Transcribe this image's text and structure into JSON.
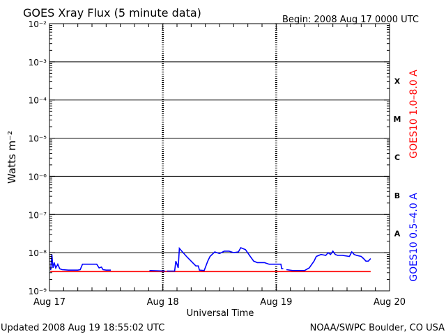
{
  "header": {
    "title": "GOES Xray Flux (5 minute data)",
    "begin": "Begin:  2008 Aug 17 0000 UTC"
  },
  "footer": {
    "updated": "Updated 2008 Aug 19 18:55:02 UTC",
    "credit": "NOAA/SWPC Boulder, CO USA"
  },
  "colors": {
    "long_channel": "#ff0000",
    "short_channel": "#0000ff",
    "axes": "#000000"
  },
  "chart_data": {
    "type": "line",
    "title": "GOES Xray Flux (5 minute data)",
    "xlabel": "Universal Time",
    "ylabel": "Watts m⁻²",
    "yscale": "log",
    "ylim": [
      1e-09,
      0.01
    ],
    "xlim": [
      "2008-08-17T00:00",
      "2008-08-20T00:00"
    ],
    "x_ticks": [
      "Aug 17",
      "Aug 18",
      "Aug 19",
      "Aug 20"
    ],
    "y_ticks": [
      "10⁻⁹",
      "10⁻⁸",
      "10⁻⁷",
      "10⁻⁶",
      "10⁻⁵",
      "10⁻⁴",
      "10⁻³",
      "10⁻²"
    ],
    "flare_classes": [
      {
        "label": "X",
        "lower": 0.0001,
        "upper": 0.001
      },
      {
        "label": "M",
        "lower": 1e-05,
        "upper": 0.0001
      },
      {
        "label": "C",
        "lower": 1e-06,
        "upper": 1e-05
      },
      {
        "label": "B",
        "lower": 1e-07,
        "upper": 1e-06
      },
      {
        "label": "A",
        "lower": 1e-08,
        "upper": 1e-07
      }
    ],
    "grid": "horizontal lines at each decade from 10⁻⁸ to 10⁻³; dashed vertical lines at day boundaries",
    "series": [
      {
        "name": "GOES10 1.0–8.0 A",
        "color": "#ff0000",
        "points": [
          [
            "2008-08-17T00:10",
            3.2e-09
          ],
          [
            "2008-08-19T20:00",
            3.2e-09
          ]
        ]
      },
      {
        "name": "GOES10 0.5–4.0 A",
        "color": "#0000ff",
        "points": [
          [
            "2008-08-17T00:15",
            3.5e-09
          ],
          [
            "2008-08-17T00:30",
            9e-09
          ],
          [
            "2008-08-17T00:45",
            4e-09
          ],
          [
            "2008-08-17T01:00",
            5.5e-09
          ],
          [
            "2008-08-17T01:20",
            4e-09
          ],
          [
            "2008-08-17T01:45",
            5e-09
          ],
          [
            "2008-08-17T02:10",
            3.8e-09
          ],
          [
            "2008-08-17T02:40",
            3.6e-09
          ],
          [
            "2008-08-17T04:00",
            3.5e-09
          ],
          [
            "2008-08-17T06:00",
            3.5e-09
          ],
          [
            "2008-08-17T06:30",
            3.6e-09
          ],
          [
            "2008-08-17T07:00",
            5e-09
          ],
          [
            "2008-08-17T09:00",
            5e-09
          ],
          [
            "2008-08-17T10:00",
            5e-09
          ],
          [
            "2008-08-17T10:30",
            4e-09
          ],
          [
            "2008-08-17T11:00",
            4.2e-09
          ],
          [
            "2008-08-17T11:20",
            3.6e-09
          ],
          [
            "2008-08-17T12:00",
            3.5e-09
          ],
          [
            "2008-08-17T12:30",
            3.5e-09
          ],
          [
            "2008-08-17T13:00",
            3.5e-09
          ],
          [
            "2008-08-17T13:40",
            null
          ],
          [
            "2008-08-17T21:10",
            3.4e-09
          ],
          [
            "2008-08-18T00:30",
            3.3e-09
          ],
          [
            "2008-08-18T00:40",
            null
          ],
          [
            "2008-08-18T00:50",
            3.3e-09
          ],
          [
            "2008-08-18T01:30",
            3.3e-09
          ],
          [
            "2008-08-18T02:00",
            3.3e-09
          ],
          [
            "2008-08-18T02:30",
            3.3e-09
          ],
          [
            "2008-08-18T02:45",
            6e-09
          ],
          [
            "2008-08-18T03:00",
            5e-09
          ],
          [
            "2008-08-18T03:15",
            4e-09
          ],
          [
            "2008-08-18T03:30",
            1.3e-08
          ],
          [
            "2008-08-18T04:00",
            1.1e-08
          ],
          [
            "2008-08-18T05:00",
            8e-09
          ],
          [
            "2008-08-18T06:00",
            6e-09
          ],
          [
            "2008-08-18T07:00",
            4.5e-09
          ],
          [
            "2008-08-18T07:30",
            4.5e-09
          ],
          [
            "2008-08-18T07:45",
            3.5e-09
          ],
          [
            "2008-08-18T08:45",
            3.4e-09
          ],
          [
            "2008-08-18T09:30",
            6e-09
          ],
          [
            "2008-08-18T10:00",
            8e-09
          ],
          [
            "2008-08-18T11:00",
            1.05e-08
          ],
          [
            "2008-08-18T12:00",
            9.5e-09
          ],
          [
            "2008-08-18T13:00",
            1.1e-08
          ],
          [
            "2008-08-18T14:00",
            1.1e-08
          ],
          [
            "2008-08-18T15:00",
            1e-08
          ],
          [
            "2008-08-18T16:00",
            1.05e-08
          ],
          [
            "2008-08-18T16:30",
            1.35e-08
          ],
          [
            "2008-08-18T17:30",
            1.2e-08
          ],
          [
            "2008-08-18T18:30",
            8e-09
          ],
          [
            "2008-08-18T19:15",
            6e-09
          ],
          [
            "2008-08-18T20:00",
            5.5e-09
          ],
          [
            "2008-08-18T21:30",
            5.5e-09
          ],
          [
            "2008-08-18T22:30",
            5e-09
          ],
          [
            "2008-08-18T23:00",
            5e-09
          ],
          [
            "2008-08-18T23:30",
            5e-09
          ],
          [
            "2008-08-19T01:00",
            5e-09
          ],
          [
            "2008-08-19T01:10",
            3.8e-09
          ],
          [
            "2008-08-19T01:30",
            3.8e-09
          ],
          [
            "2008-08-19T01:50",
            null
          ],
          [
            "2008-08-19T02:10",
            3.6e-09
          ],
          [
            "2008-08-19T03:30",
            3.4e-09
          ],
          [
            "2008-08-19T06:00",
            3.4e-09
          ],
          [
            "2008-08-19T07:00",
            4e-09
          ],
          [
            "2008-08-19T08:00",
            6e-09
          ],
          [
            "2008-08-19T08:30",
            8e-09
          ],
          [
            "2008-08-19T09:30",
            9e-09
          ],
          [
            "2008-08-19T10:30",
            8.5e-09
          ],
          [
            "2008-08-19T11:00",
            1e-08
          ],
          [
            "2008-08-19T11:30",
            9e-09
          ],
          [
            "2008-08-19T12:00",
            1.1e-08
          ],
          [
            "2008-08-19T12:30",
            9e-09
          ],
          [
            "2008-08-19T13:00",
            8.5e-09
          ],
          [
            "2008-08-19T14:00",
            8.5e-09
          ],
          [
            "2008-08-19T15:30",
            8e-09
          ],
          [
            "2008-08-19T16:00",
            1.05e-08
          ],
          [
            "2008-08-19T16:30",
            9e-09
          ],
          [
            "2008-08-19T17:00",
            8.5e-09
          ],
          [
            "2008-08-19T18:00",
            8e-09
          ],
          [
            "2008-08-19T18:30",
            7e-09
          ],
          [
            "2008-08-19T19:00",
            6e-09
          ],
          [
            "2008-08-19T19:30",
            6e-09
          ],
          [
            "2008-08-19T20:00",
            7e-09
          ]
        ]
      }
    ]
  }
}
